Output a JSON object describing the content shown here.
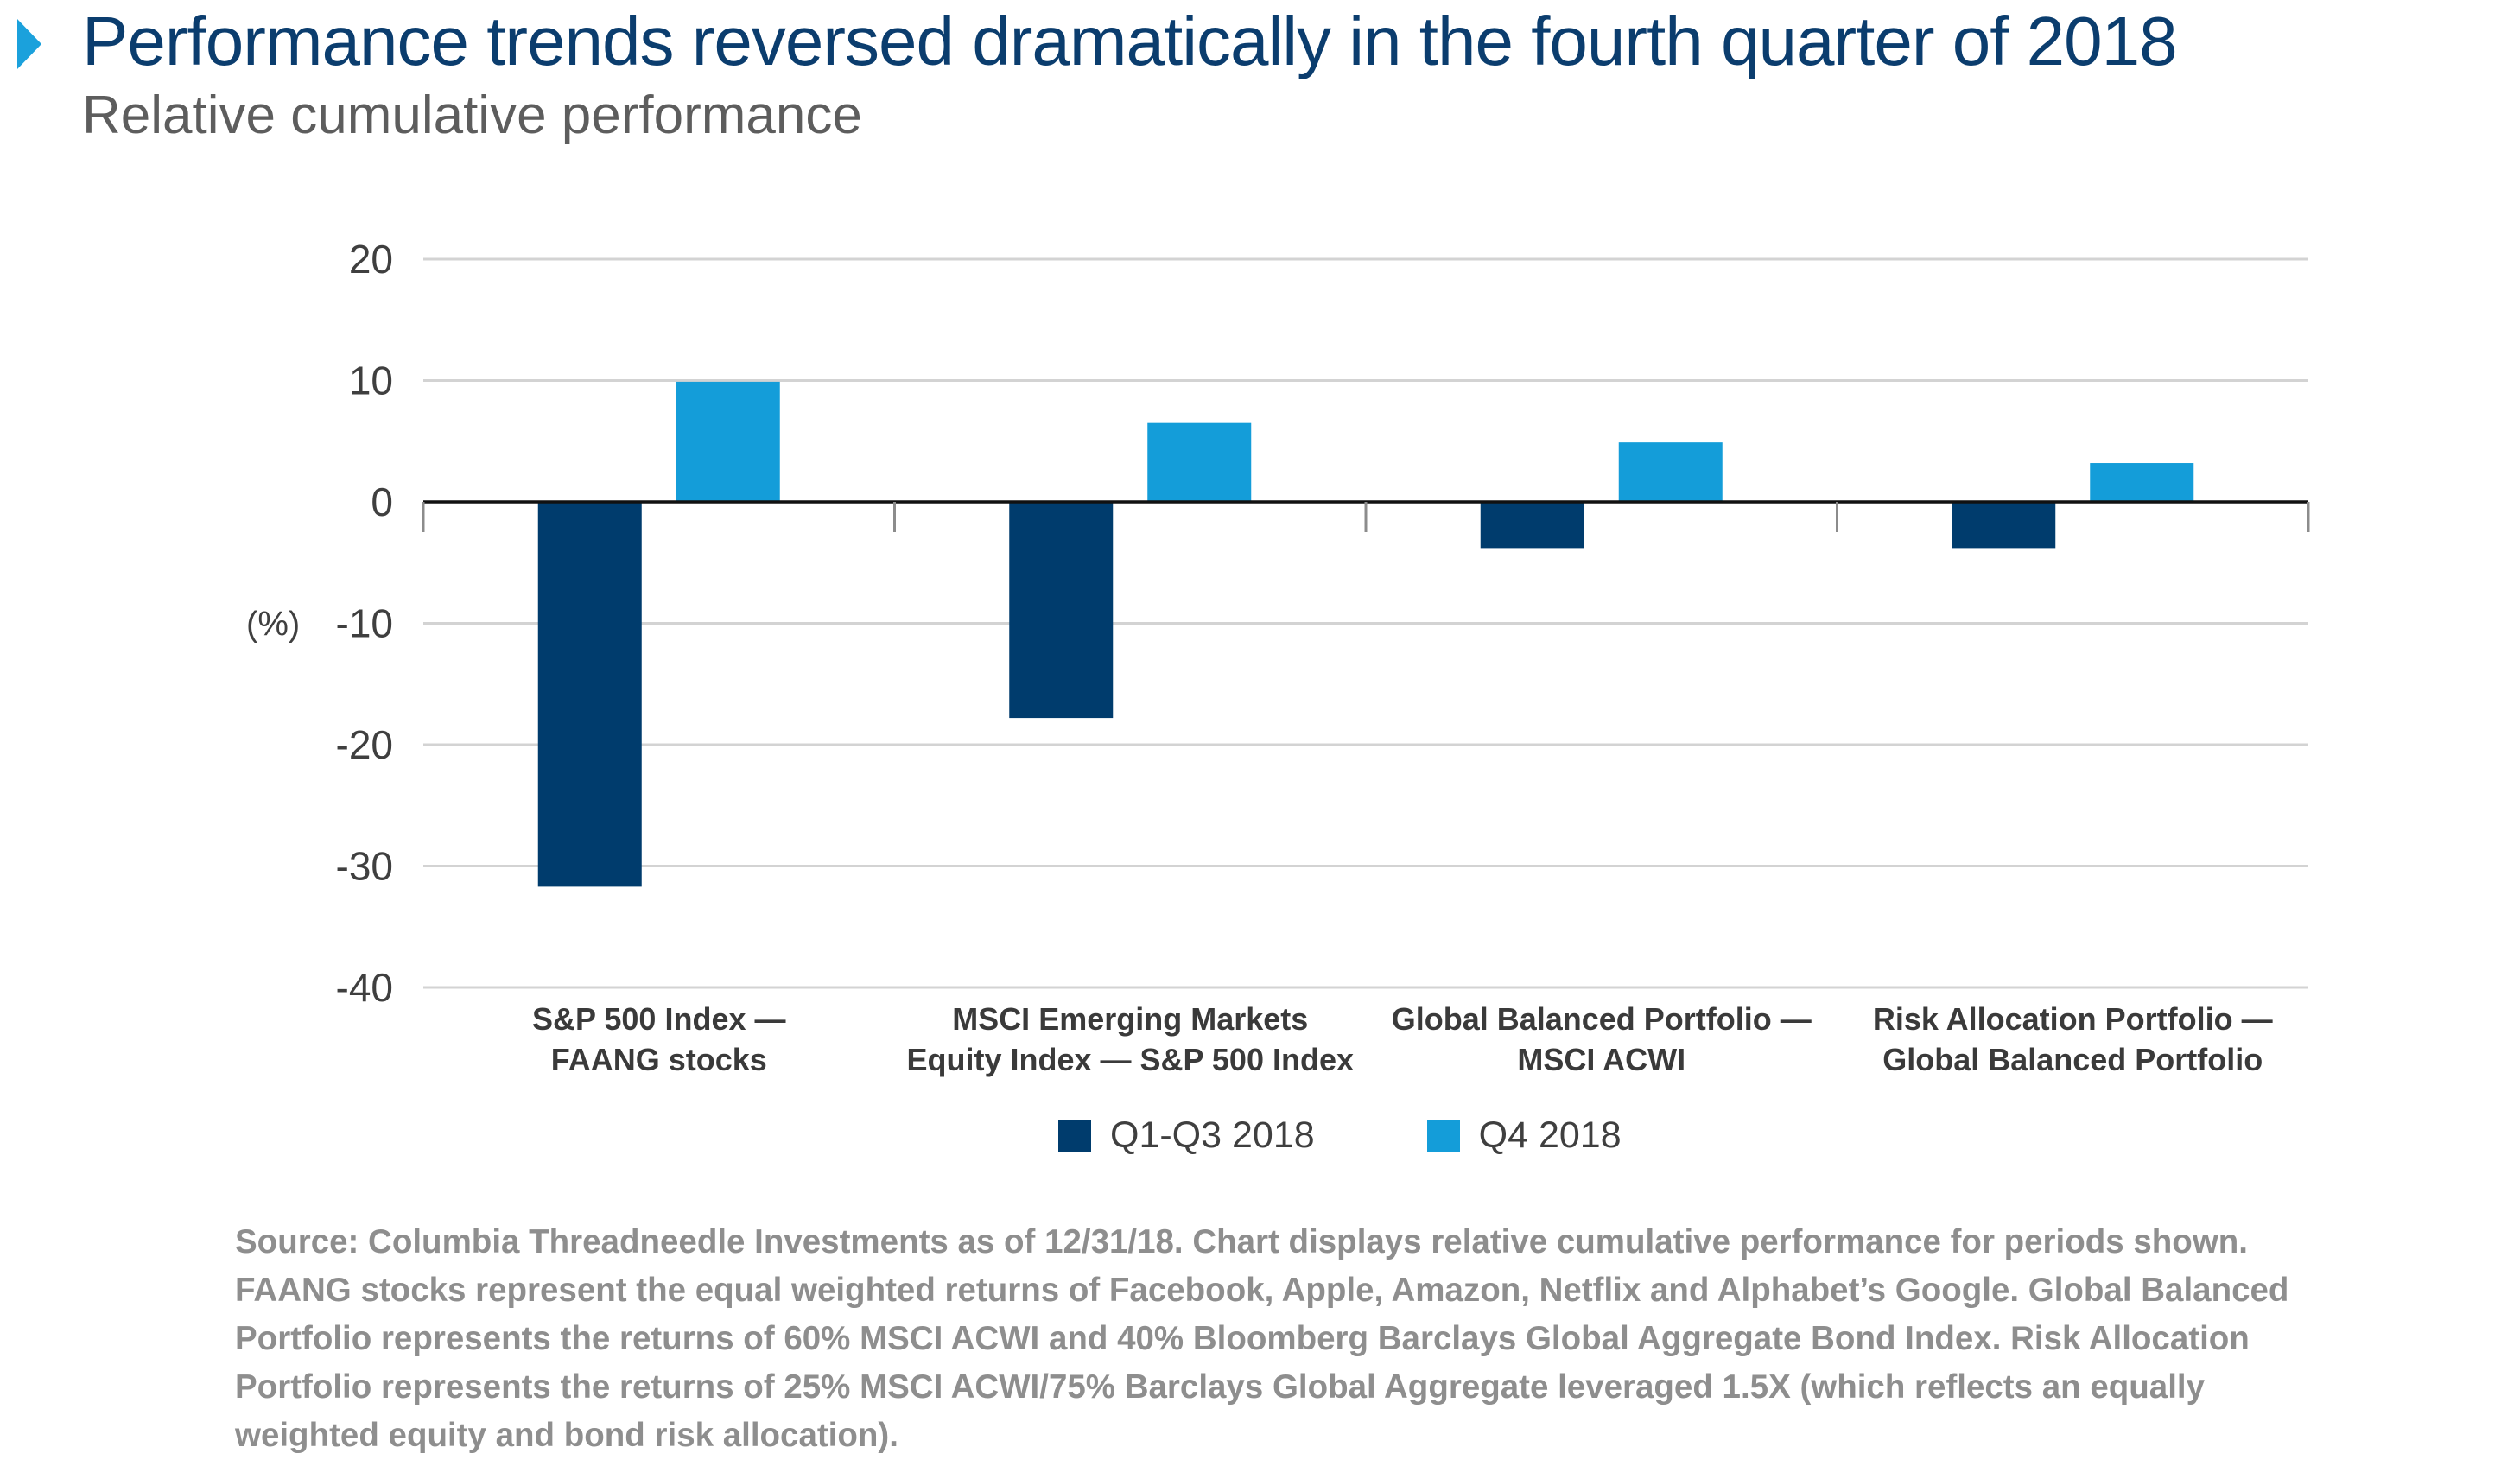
{
  "title": "Performance trends reversed dramatically in the fourth quarter of 2018",
  "subtitle": "Relative cumulative performance",
  "source": "Source: Columbia Threadneedle Investments as of 12/31/18. Chart displays relative cumulative performance for periods shown. FAANG stocks represent the equal weighted returns of Facebook, Apple, Amazon, Netflix and Alphabet’s Google. Global Balanced Portfolio represents the returns of 60% MSCI ACWI and 40% Bloomberg Barclays Global Aggregate Bond Index. Risk Allocation Portfolio represents the returns of 25% MSCI ACWI/75% Barclays Global Aggregate leveraged 1.5X (which reflects an equally weighted equity and bond risk allocation).",
  "colors": {
    "title": "#0b3d6e",
    "accent": "#1ba1dc"
  },
  "chart_data": {
    "type": "bar",
    "title": "",
    "xlabel": "",
    "ylabel": "(%)",
    "ylim": [
      -40,
      20
    ],
    "yticks": [
      20,
      10,
      0,
      -10,
      -20,
      -30,
      -40
    ],
    "grid": true,
    "legend_position": "bottom",
    "categories": [
      [
        "S&P 500 Index —",
        "FAANG stocks"
      ],
      [
        "MSCI Emerging Markets",
        "Equity Index — S&P 500 Index"
      ],
      [
        "Global Balanced Portfolio —",
        "MSCI  ACWI"
      ],
      [
        "Risk Allocation Portfolio —",
        "Global Balanced Portfolio"
      ]
    ],
    "series": [
      {
        "name": "Q1-Q3 2018",
        "color": "#003c6d",
        "values": [
          -31.7,
          -17.8,
          -3.8,
          -3.8
        ]
      },
      {
        "name": "Q4 2018",
        "color": "#149dd9",
        "values": [
          9.9,
          6.5,
          4.9,
          3.2
        ]
      }
    ]
  }
}
